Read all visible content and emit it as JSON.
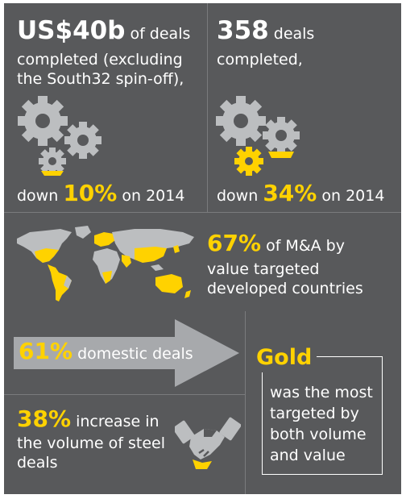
{
  "colors": {
    "background": "#58595b",
    "accent": "#ffd200",
    "gear": "#bcbec0",
    "text": "#ffffff"
  },
  "stat_deal_value": {
    "highlight": "US$40b",
    "text_line1": " of deals",
    "text_line2": "completed (excluding",
    "text_line3": "the South32 spin-off),",
    "change_prefix": "down ",
    "change_value": "10%",
    "change_suffix": " on 2014"
  },
  "stat_deal_count": {
    "highlight": "358",
    "text_line1": " deals",
    "text_line2": "completed,",
    "change_prefix": "down ",
    "change_value": "34%",
    "change_suffix": " on 2014"
  },
  "stat_developed": {
    "highlight": "67%",
    "text_line1": " of M&A by",
    "text_line2": "value targeted",
    "text_line3": "developed countries"
  },
  "stat_domestic": {
    "highlight": "61%",
    "text": " domestic deals"
  },
  "stat_gold": {
    "highlight": "Gold",
    "line1": "was the most",
    "line2": "targeted by",
    "line3": "both volume",
    "line4": "and value"
  },
  "stat_steel": {
    "highlight": "38%",
    "text_line1": " increase in",
    "text_line2": "the volume of steel",
    "text_line3": "deals"
  },
  "icons": [
    "gears-icon",
    "gears-icon",
    "world-map-icon",
    "arrow-icon",
    "handshake-icon"
  ]
}
